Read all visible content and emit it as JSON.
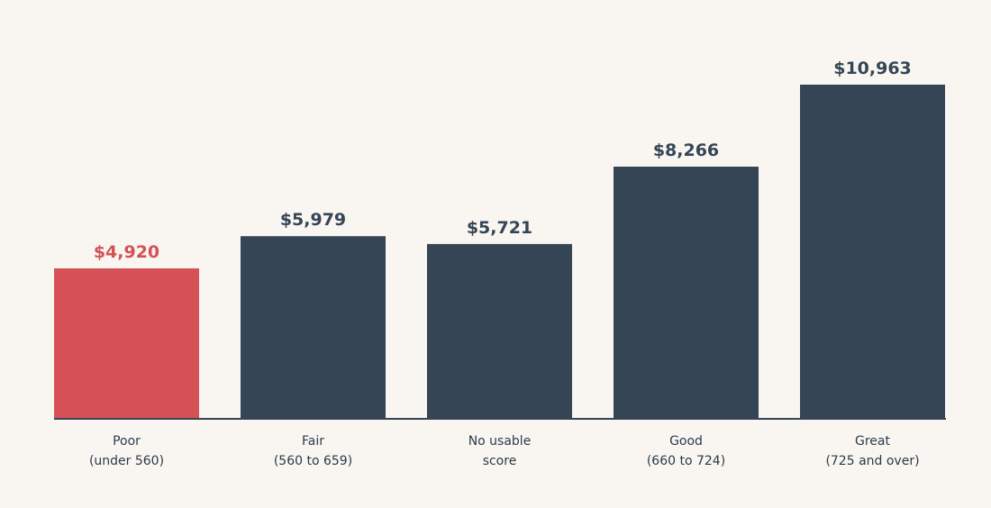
{
  "chart_data": {
    "type": "bar",
    "categories": [
      [
        "Poor",
        "(under 560)"
      ],
      [
        "Fair",
        "(560 to 659)"
      ],
      [
        "No usable",
        "score"
      ],
      [
        "Good",
        "(660 to 724)"
      ],
      [
        "Great",
        "(725 and over)"
      ]
    ],
    "values": [
      4920,
      5979,
      5721,
      8266,
      10963
    ],
    "value_labels": [
      "$4,920",
      "$5,979",
      "$5,721",
      "$8,266",
      "$10,963"
    ],
    "highlight_index": 0,
    "ylim": [
      0,
      12000
    ],
    "grid": false,
    "title": "",
    "xlabel": "",
    "ylabel": ""
  },
  "colors": {
    "background": "#f9f6f2",
    "bar": "#354555",
    "highlight": "#d55156",
    "axis": "#354555",
    "category_text": "#2b3a4a"
  }
}
